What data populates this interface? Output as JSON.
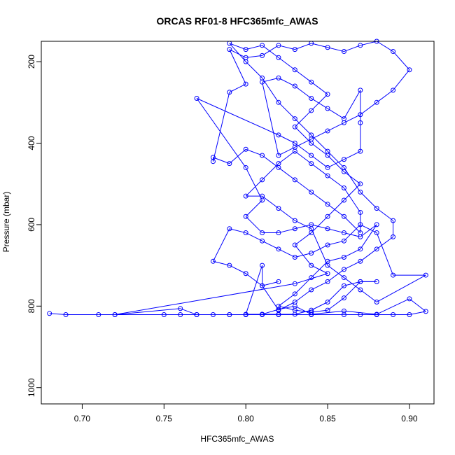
{
  "chart_data": {
    "type": "scatter",
    "title": "ORCAS RF01-8 HFC365mfc_AWAS",
    "xlabel": "HFC365mfc_AWAS",
    "ylabel": "Pressure (mbar)",
    "xlim": [
      0.675,
      0.915
    ],
    "ylim": [
      1040,
      150
    ],
    "y_axis_inverted": true,
    "x_ticks": [
      0.7,
      0.75,
      0.8,
      0.85,
      0.9
    ],
    "x_tick_labels": [
      "0.70",
      "0.75",
      "0.80",
      "0.85",
      "0.90"
    ],
    "y_ticks": [
      200,
      400,
      600,
      800,
      1000
    ],
    "y_tick_labels": [
      "200",
      "400",
      "600",
      "800",
      "1000"
    ],
    "grid": false,
    "legend": "none",
    "series_color": "#0000ff",
    "marker": "open-circle",
    "connected_by_lines": true,
    "points": [
      [
        0.68,
        818
      ],
      [
        0.69,
        821
      ],
      [
        0.71,
        821
      ],
      [
        0.72,
        821
      ],
      [
        0.75,
        821
      ],
      [
        0.76,
        821
      ],
      [
        0.77,
        821
      ],
      [
        0.78,
        821
      ],
      [
        0.79,
        821
      ],
      [
        0.8,
        821
      ],
      [
        0.81,
        821
      ],
      [
        0.82,
        821
      ],
      [
        0.84,
        821
      ],
      [
        0.86,
        821
      ],
      [
        0.87,
        821
      ],
      [
        0.88,
        821
      ],
      [
        0.89,
        821
      ],
      [
        0.9,
        821
      ],
      [
        0.91,
        813
      ],
      [
        0.9,
        782
      ],
      [
        0.88,
        820
      ],
      [
        0.86,
        812
      ],
      [
        0.84,
        820
      ],
      [
        0.83,
        800
      ],
      [
        0.82,
        808
      ],
      [
        0.81,
        820
      ],
      [
        0.8,
        821
      ],
      [
        0.79,
        821
      ],
      [
        0.77,
        821
      ],
      [
        0.76,
        806
      ],
      [
        0.72,
        821
      ],
      [
        0.83,
        745
      ],
      [
        0.85,
        720
      ],
      [
        0.84,
        700
      ],
      [
        0.83,
        650
      ],
      [
        0.84,
        620
      ],
      [
        0.85,
        580
      ],
      [
        0.86,
        540
      ],
      [
        0.87,
        500
      ],
      [
        0.86,
        470
      ],
      [
        0.85,
        430
      ],
      [
        0.84,
        400
      ],
      [
        0.83,
        360
      ],
      [
        0.84,
        320
      ],
      [
        0.85,
        280
      ],
      [
        0.84,
        250
      ],
      [
        0.83,
        220
      ],
      [
        0.82,
        190
      ],
      [
        0.81,
        160
      ],
      [
        0.8,
        170
      ],
      [
        0.79,
        155
      ],
      [
        0.8,
        200
      ],
      [
        0.81,
        240
      ],
      [
        0.82,
        300
      ],
      [
        0.83,
        340
      ],
      [
        0.84,
        380
      ],
      [
        0.85,
        420
      ],
      [
        0.86,
        460
      ],
      [
        0.87,
        520
      ],
      [
        0.88,
        560
      ],
      [
        0.89,
        590
      ],
      [
        0.89,
        630
      ],
      [
        0.88,
        660
      ],
      [
        0.87,
        690
      ],
      [
        0.86,
        710
      ],
      [
        0.85,
        740
      ],
      [
        0.84,
        760
      ],
      [
        0.83,
        790
      ],
      [
        0.82,
        810
      ],
      [
        0.81,
        750
      ],
      [
        0.8,
        720
      ],
      [
        0.79,
        700
      ],
      [
        0.78,
        690
      ],
      [
        0.79,
        610
      ],
      [
        0.8,
        620
      ],
      [
        0.81,
        640
      ],
      [
        0.82,
        660
      ],
      [
        0.83,
        680
      ],
      [
        0.84,
        670
      ],
      [
        0.85,
        650
      ],
      [
        0.86,
        640
      ],
      [
        0.87,
        600
      ],
      [
        0.88,
        620
      ],
      [
        0.89,
        724
      ],
      [
        0.91,
        724
      ],
      [
        0.88,
        790
      ],
      [
        0.87,
        760
      ],
      [
        0.86,
        730
      ],
      [
        0.85,
        700
      ],
      [
        0.84,
        610
      ],
      [
        0.83,
        590
      ],
      [
        0.82,
        560
      ],
      [
        0.81,
        530
      ],
      [
        0.8,
        530
      ],
      [
        0.81,
        490
      ],
      [
        0.82,
        450
      ],
      [
        0.83,
        420
      ],
      [
        0.84,
        450
      ],
      [
        0.85,
        480
      ],
      [
        0.86,
        510
      ],
      [
        0.87,
        570
      ],
      [
        0.87,
        620
      ],
      [
        0.86,
        580
      ],
      [
        0.85,
        550
      ],
      [
        0.84,
        520
      ],
      [
        0.83,
        490
      ],
      [
        0.82,
        460
      ],
      [
        0.81,
        430
      ],
      [
        0.8,
        415
      ],
      [
        0.79,
        450
      ],
      [
        0.78,
        435
      ],
      [
        0.78,
        445
      ],
      [
        0.79,
        275
      ],
      [
        0.8,
        255
      ],
      [
        0.79,
        170
      ],
      [
        0.8,
        190
      ],
      [
        0.81,
        185
      ],
      [
        0.82,
        160
      ],
      [
        0.83,
        170
      ],
      [
        0.84,
        155
      ],
      [
        0.85,
        165
      ],
      [
        0.86,
        175
      ],
      [
        0.87,
        160
      ],
      [
        0.88,
        150
      ],
      [
        0.89,
        175
      ],
      [
        0.9,
        220
      ],
      [
        0.89,
        270
      ],
      [
        0.88,
        300
      ],
      [
        0.87,
        330
      ],
      [
        0.86,
        350
      ],
      [
        0.85,
        370
      ],
      [
        0.84,
        390
      ],
      [
        0.83,
        410
      ],
      [
        0.82,
        430
      ],
      [
        0.81,
        250
      ],
      [
        0.82,
        240
      ],
      [
        0.83,
        260
      ],
      [
        0.84,
        290
      ],
      [
        0.85,
        315
      ],
      [
        0.86,
        340
      ],
      [
        0.87,
        270
      ],
      [
        0.87,
        350
      ],
      [
        0.87,
        420
      ],
      [
        0.86,
        440
      ],
      [
        0.85,
        460
      ],
      [
        0.84,
        430
      ],
      [
        0.83,
        400
      ],
      [
        0.82,
        380
      ],
      [
        0.77,
        290
      ],
      [
        0.8,
        460
      ],
      [
        0.81,
        540
      ],
      [
        0.8,
        580
      ],
      [
        0.81,
        620
      ],
      [
        0.82,
        620
      ],
      [
        0.83,
        610
      ],
      [
        0.84,
        600
      ],
      [
        0.85,
        610
      ],
      [
        0.86,
        620
      ],
      [
        0.87,
        630
      ],
      [
        0.88,
        600
      ],
      [
        0.87,
        660
      ],
      [
        0.86,
        680
      ],
      [
        0.85,
        690
      ],
      [
        0.84,
        730
      ],
      [
        0.83,
        770
      ],
      [
        0.82,
        800
      ],
      [
        0.83,
        810
      ],
      [
        0.84,
        815
      ],
      [
        0.85,
        810
      ],
      [
        0.86,
        780
      ],
      [
        0.87,
        740
      ],
      [
        0.88,
        740
      ],
      [
        0.87,
        740
      ],
      [
        0.86,
        750
      ],
      [
        0.85,
        790
      ],
      [
        0.84,
        810
      ],
      [
        0.83,
        820
      ],
      [
        0.82,
        820
      ],
      [
        0.81,
        820
      ],
      [
        0.8,
        820
      ],
      [
        0.81,
        700
      ],
      [
        0.81,
        750
      ],
      [
        0.82,
        740
      ]
    ]
  }
}
